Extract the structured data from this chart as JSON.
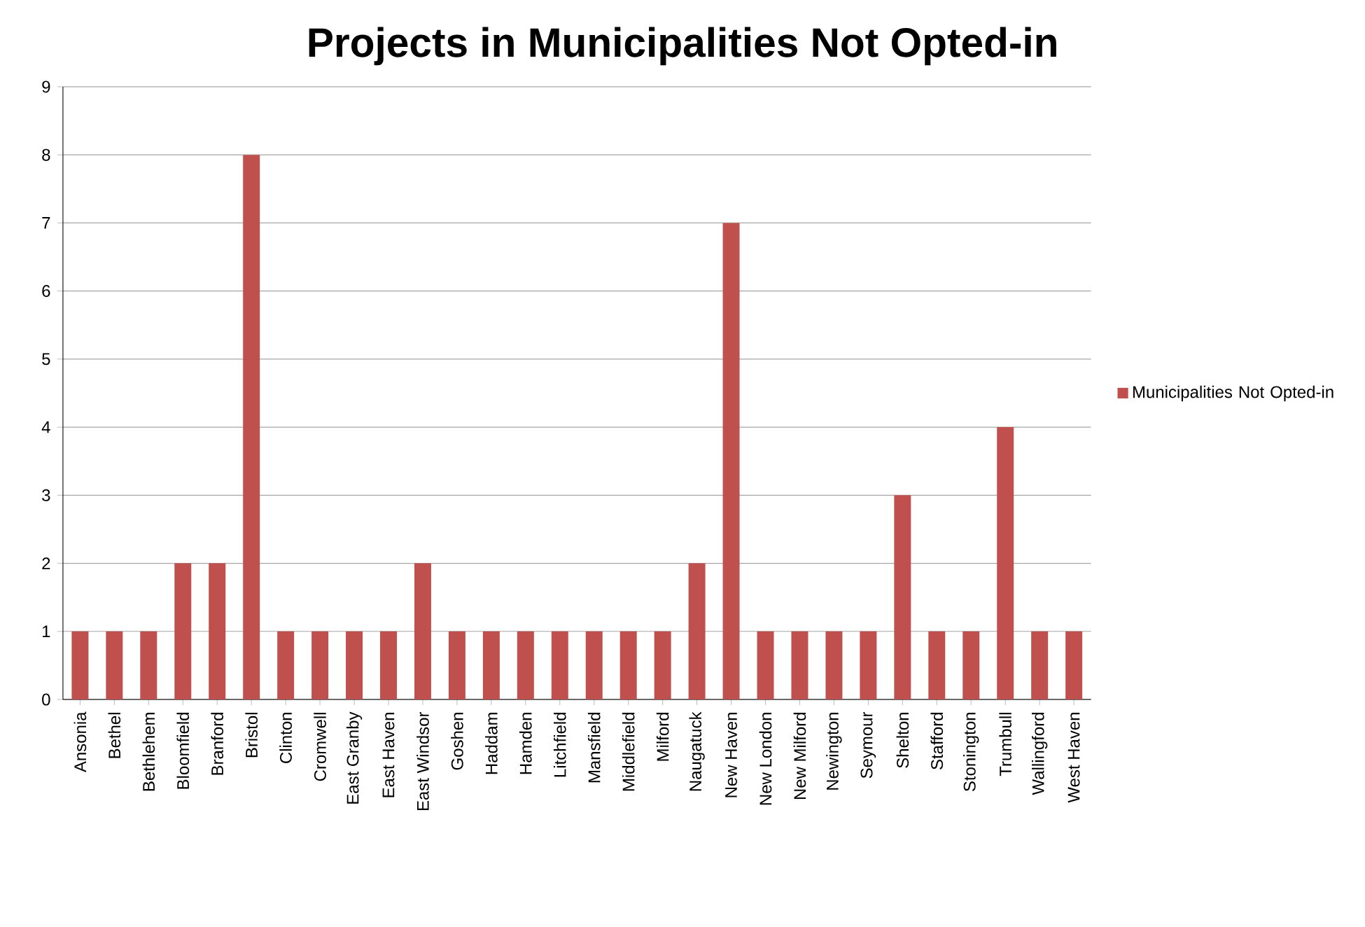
{
  "chart_data": {
    "type": "bar",
    "title": "Projects in Municipalities Not Opted-in",
    "categories": [
      "Ansonia",
      "Bethel",
      "Bethlehem",
      "Bloomfield",
      "Branford",
      "Bristol",
      "Clinton",
      "Cromwell",
      "East Granby",
      "East Haven",
      "East Windsor",
      "Goshen",
      "Haddam",
      "Hamden",
      "Litchfield",
      "Mansfield",
      "Middlefield",
      "Milford",
      "Naugatuck",
      "New Haven",
      "New London",
      "New Milford",
      "Newington",
      "Seymour",
      "Shelton",
      "Stafford",
      "Stonington",
      "Trumbull",
      "Wallingford",
      "West Haven"
    ],
    "series": [
      {
        "name": "Municipalities Not Opted-in",
        "color": "#c0504d",
        "values": [
          1,
          1,
          1,
          2,
          2,
          8,
          1,
          1,
          1,
          1,
          2,
          1,
          1,
          1,
          1,
          1,
          1,
          1,
          2,
          7,
          1,
          1,
          1,
          1,
          3,
          1,
          1,
          4,
          1,
          1
        ]
      }
    ],
    "ylim": [
      0,
      9
    ],
    "yticks": [
      0,
      1,
      2,
      3,
      4,
      5,
      6,
      7,
      8,
      9
    ],
    "grid": "y",
    "legend": "right"
  }
}
